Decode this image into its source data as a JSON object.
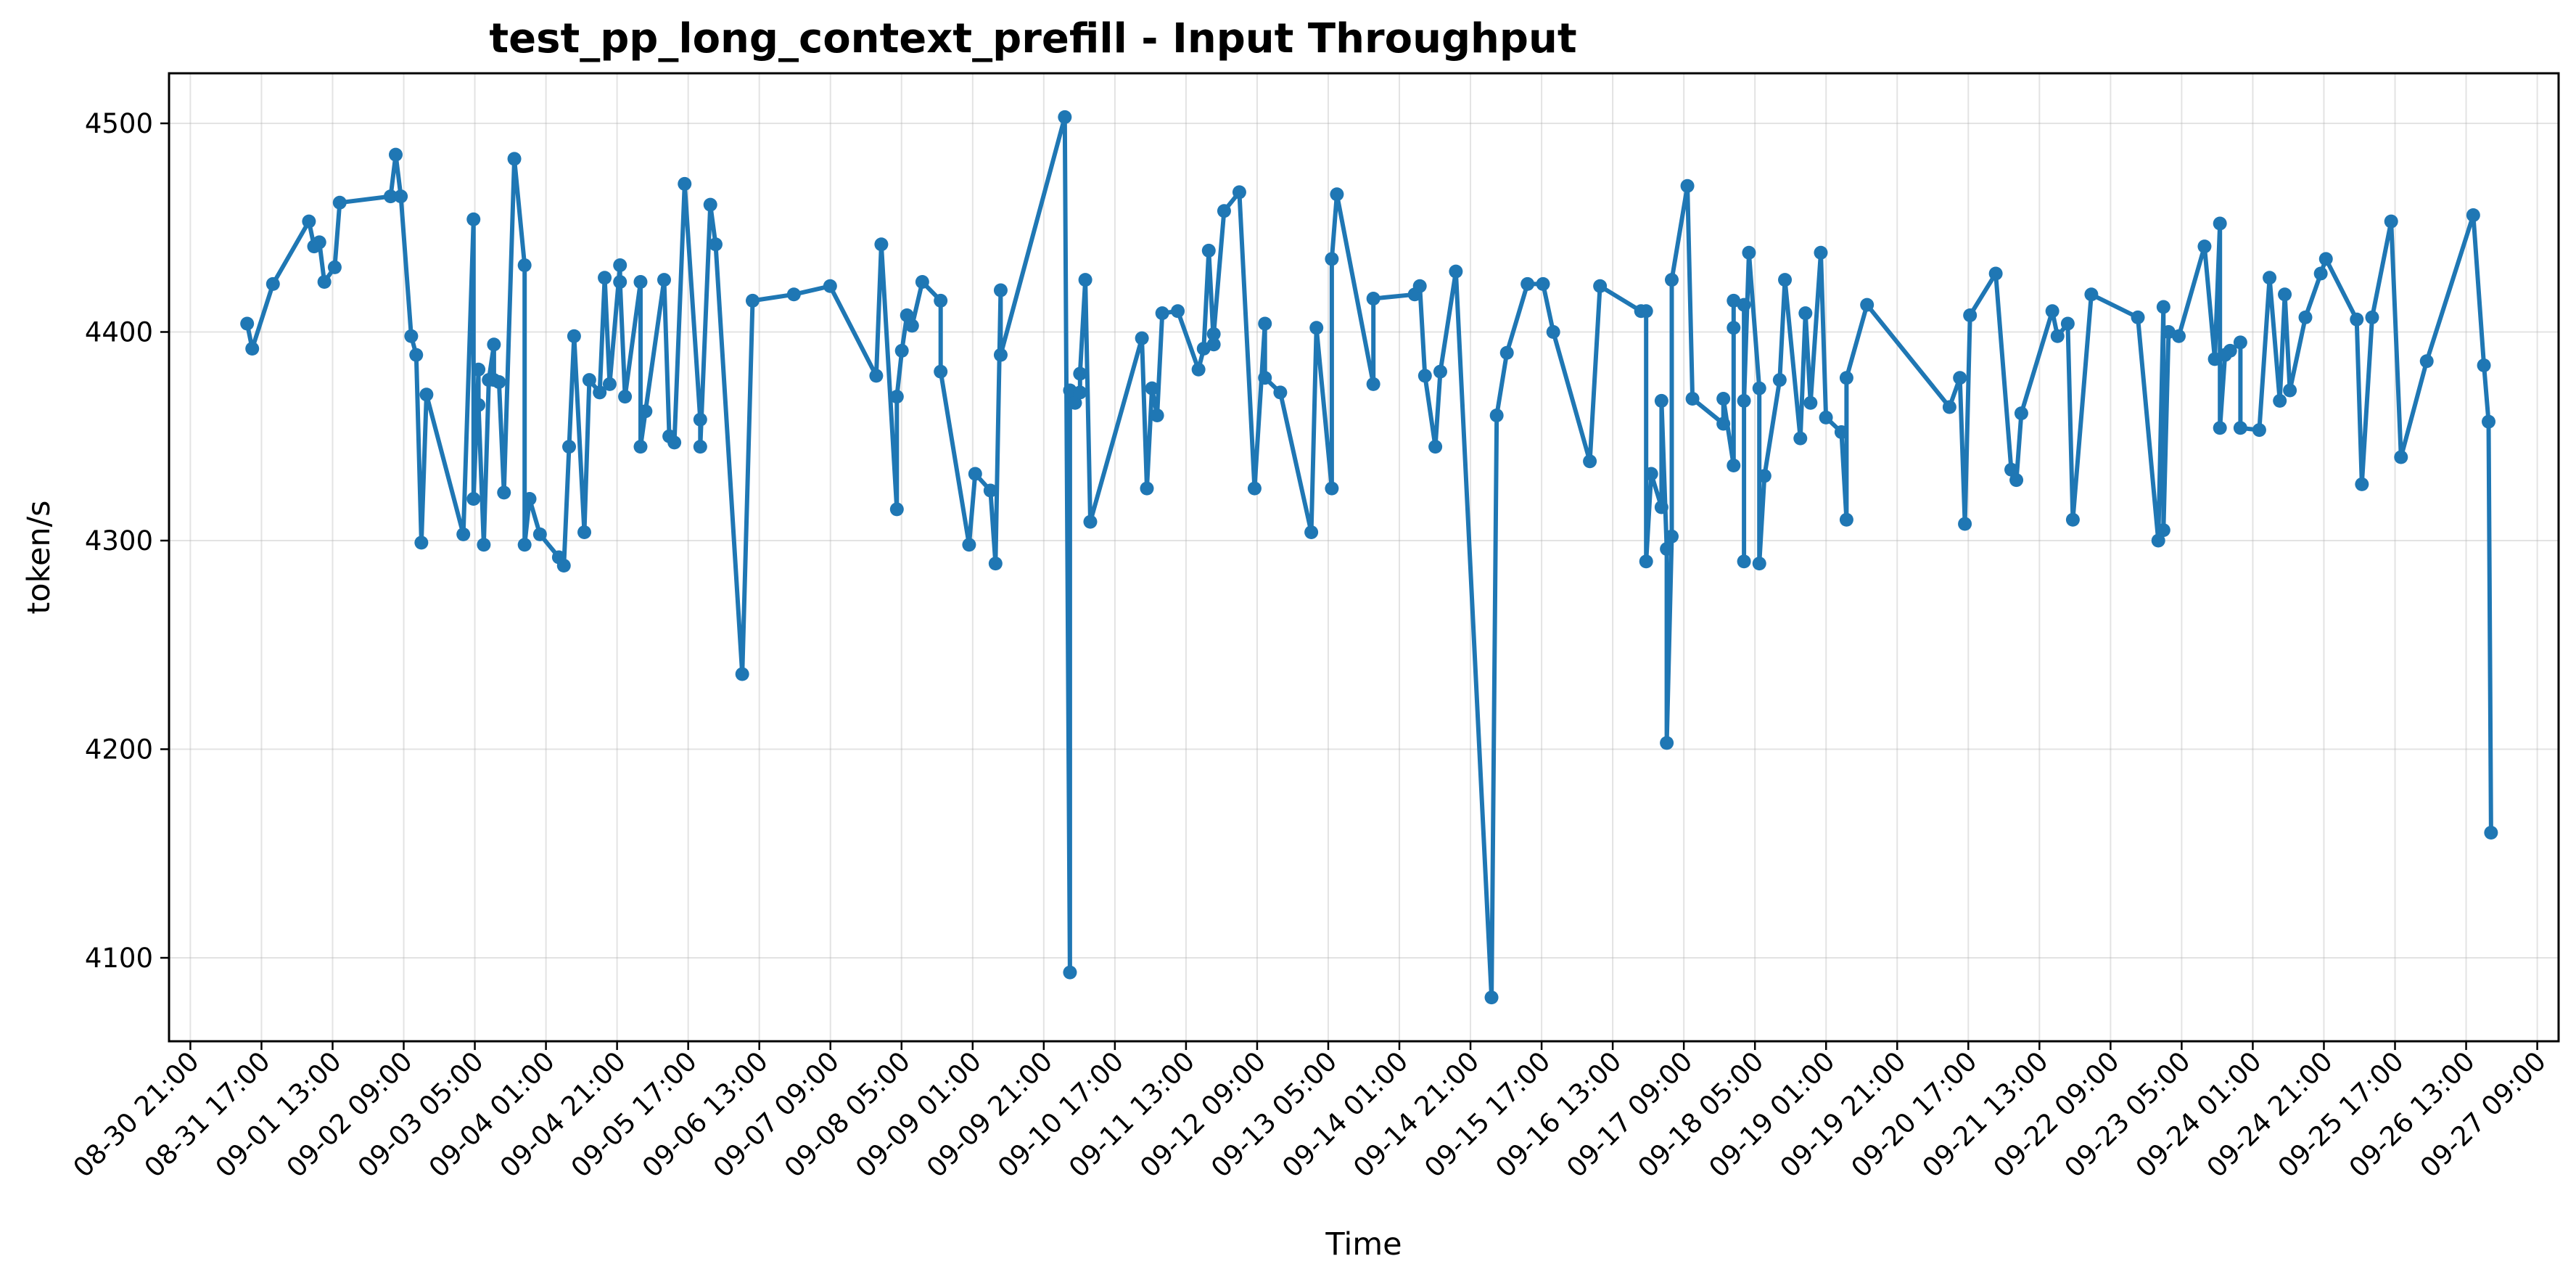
{
  "chart_data": {
    "type": "line",
    "title": "test_pp_long_context_prefill - Input Throughput",
    "xlabel": "Time",
    "ylabel": "token/s",
    "x_axis_type": "datetime",
    "xlim": [
      "2025-08-30 15:00",
      "2025-09-27 15:00"
    ],
    "ylim": [
      4060,
      4524
    ],
    "grid": true,
    "colors": {
      "series": "#1f77b4"
    },
    "x_ticks": [
      {
        "t": "2025-08-30 21:00",
        "label": "08-30 21:00"
      },
      {
        "t": "2025-08-31 17:00",
        "label": "08-31 17:00"
      },
      {
        "t": "2025-09-01 13:00",
        "label": "09-01 13:00"
      },
      {
        "t": "2025-09-02 09:00",
        "label": "09-02 09:00"
      },
      {
        "t": "2025-09-03 05:00",
        "label": "09-03 05:00"
      },
      {
        "t": "2025-09-04 01:00",
        "label": "09-04 01:00"
      },
      {
        "t": "2025-09-04 21:00",
        "label": "09-04 21:00"
      },
      {
        "t": "2025-09-05 17:00",
        "label": "09-05 17:00"
      },
      {
        "t": "2025-09-06 13:00",
        "label": "09-06 13:00"
      },
      {
        "t": "2025-09-07 09:00",
        "label": "09-07 09:00"
      },
      {
        "t": "2025-09-08 05:00",
        "label": "09-08 05:00"
      },
      {
        "t": "2025-09-09 01:00",
        "label": "09-09 01:00"
      },
      {
        "t": "2025-09-09 21:00",
        "label": "09-09 21:00"
      },
      {
        "t": "2025-09-10 17:00",
        "label": "09-10 17:00"
      },
      {
        "t": "2025-09-11 13:00",
        "label": "09-11 13:00"
      },
      {
        "t": "2025-09-12 09:00",
        "label": "09-12 09:00"
      },
      {
        "t": "2025-09-13 05:00",
        "label": "09-13 05:00"
      },
      {
        "t": "2025-09-14 01:00",
        "label": "09-14 01:00"
      },
      {
        "t": "2025-09-14 21:00",
        "label": "09-14 21:00"
      },
      {
        "t": "2025-09-15 17:00",
        "label": "09-15 17:00"
      },
      {
        "t": "2025-09-16 13:00",
        "label": "09-16 13:00"
      },
      {
        "t": "2025-09-17 09:00",
        "label": "09-17 09:00"
      },
      {
        "t": "2025-09-18 05:00",
        "label": "09-18 05:00"
      },
      {
        "t": "2025-09-19 01:00",
        "label": "09-19 01:00"
      },
      {
        "t": "2025-09-19 21:00",
        "label": "09-19 21:00"
      },
      {
        "t": "2025-09-20 17:00",
        "label": "09-20 17:00"
      },
      {
        "t": "2025-09-21 13:00",
        "label": "09-21 13:00"
      },
      {
        "t": "2025-09-22 09:00",
        "label": "09-22 09:00"
      },
      {
        "t": "2025-09-23 05:00",
        "label": "09-23 05:00"
      },
      {
        "t": "2025-09-24 01:00",
        "label": "09-24 01:00"
      },
      {
        "t": "2025-09-24 21:00",
        "label": "09-24 21:00"
      },
      {
        "t": "2025-09-25 17:00",
        "label": "09-25 17:00"
      },
      {
        "t": "2025-09-26 13:00",
        "label": "09-26 13:00"
      },
      {
        "t": "2025-09-27 09:00",
        "label": "09-27 09:00"
      }
    ],
    "y_ticks": [
      {
        "v": 4100,
        "label": "4100"
      },
      {
        "v": 4200,
        "label": "4200"
      },
      {
        "v": 4300,
        "label": "4300"
      },
      {
        "v": 4400,
        "label": "4400"
      },
      {
        "v": 4500,
        "label": "4500"
      }
    ],
    "series": [
      {
        "points": [
          [
            "2025-08-31 12:58",
            4404
          ],
          [
            "2025-08-31 14:24",
            4392
          ],
          [
            "2025-08-31 20:14",
            4423
          ],
          [
            "2025-09-01 06:21",
            4453
          ],
          [
            "2025-09-01 07:48",
            4441
          ],
          [
            "2025-09-01 09:17",
            4443
          ],
          [
            "2025-09-01 10:41",
            4424
          ],
          [
            "2025-09-01 13:36",
            4431
          ],
          [
            "2025-09-01 15:00",
            4462
          ],
          [
            "2025-09-02 05:19",
            4465
          ],
          [
            "2025-09-02 06:45",
            4485
          ],
          [
            "2025-09-02 08:12",
            4465
          ],
          [
            "2025-09-02 11:07",
            4398
          ],
          [
            "2025-09-02 12:31",
            4389
          ],
          [
            "2025-09-02 13:58",
            4299
          ],
          [
            "2025-09-02 15:24",
            4370
          ],
          [
            "2025-09-03 01:46",
            4303
          ],
          [
            "2025-09-03 04:38",
            4454
          ],
          [
            "2025-09-03 04:38",
            4320
          ],
          [
            "2025-09-03 06:02",
            4382
          ],
          [
            "2025-09-03 06:02",
            4365
          ],
          [
            "2025-09-03 07:31",
            4298
          ],
          [
            "2025-09-03 08:55",
            4377
          ],
          [
            "2025-09-03 10:22",
            4394
          ],
          [
            "2025-09-03 10:22",
            4377
          ],
          [
            "2025-09-03 11:48",
            4376
          ],
          [
            "2025-09-03 13:12",
            4323
          ],
          [
            "2025-09-03 16:07",
            4483
          ],
          [
            "2025-09-03 19:00",
            4432
          ],
          [
            "2025-09-03 19:00",
            4298
          ],
          [
            "2025-09-03 20:24",
            4320
          ],
          [
            "2025-09-03 23:19",
            4303
          ],
          [
            "2025-09-04 04:38",
            4292
          ],
          [
            "2025-09-04 06:02",
            4288
          ],
          [
            "2025-09-04 07:31",
            4345
          ],
          [
            "2025-09-04 08:55",
            4398
          ],
          [
            "2025-09-04 11:48",
            4304
          ],
          [
            "2025-09-04 13:12",
            4377
          ],
          [
            "2025-09-04 16:07",
            4371
          ],
          [
            "2025-09-04 17:31",
            4426
          ],
          [
            "2025-09-04 18:55",
            4375
          ],
          [
            "2025-09-04 21:50",
            4432
          ],
          [
            "2025-09-04 21:50",
            4424
          ],
          [
            "2025-09-04 23:14",
            4369
          ],
          [
            "2025-09-05 03:36",
            4424
          ],
          [
            "2025-09-05 03:36",
            4345
          ],
          [
            "2025-09-05 05:00",
            4362
          ],
          [
            "2025-09-05 10:14",
            4425
          ],
          [
            "2025-09-05 11:41",
            4350
          ],
          [
            "2025-09-05 13:07",
            4347
          ],
          [
            "2025-09-05 16:00",
            4471
          ],
          [
            "2025-09-05 20:24",
            4358
          ],
          [
            "2025-09-05 20:24",
            4345
          ],
          [
            "2025-09-05 23:14",
            4461
          ],
          [
            "2025-09-06 00:43",
            4442
          ],
          [
            "2025-09-06 08:12",
            4236
          ],
          [
            "2025-09-06 11:07",
            4415
          ],
          [
            "2025-09-06 22:43",
            4418
          ],
          [
            "2025-09-07 08:55",
            4422
          ],
          [
            "2025-09-07 21:53",
            4379
          ],
          [
            "2025-09-07 23:19",
            4442
          ],
          [
            "2025-09-08 03:41",
            4315
          ],
          [
            "2025-09-08 03:41",
            4369
          ],
          [
            "2025-09-08 05:05",
            4391
          ],
          [
            "2025-09-08 06:31",
            4408
          ],
          [
            "2025-09-08 07:58",
            4403
          ],
          [
            "2025-09-08 10:50",
            4424
          ],
          [
            "2025-09-08 16:00",
            4415
          ],
          [
            "2025-09-08 16:00",
            4381
          ],
          [
            "2025-09-09 00:00",
            4298
          ],
          [
            "2025-09-09 01:43",
            4332
          ],
          [
            "2025-09-09 06:00",
            4324
          ],
          [
            "2025-09-09 07:26",
            4289
          ],
          [
            "2025-09-09 08:53",
            4420
          ],
          [
            "2025-09-09 08:53",
            4389
          ],
          [
            "2025-09-10 02:55",
            4503
          ],
          [
            "2025-09-10 04:22",
            4093
          ],
          [
            "2025-09-10 04:22",
            4372
          ],
          [
            "2025-09-10 05:48",
            4366
          ],
          [
            "2025-09-10 07:12",
            4371
          ],
          [
            "2025-09-10 07:12",
            4380
          ],
          [
            "2025-09-10 08:41",
            4425
          ],
          [
            "2025-09-10 10:05",
            4309
          ],
          [
            "2025-09-11 00:36",
            4397
          ],
          [
            "2025-09-11 02:00",
            4325
          ],
          [
            "2025-09-11 03:26",
            4373
          ],
          [
            "2025-09-11 04:53",
            4360
          ],
          [
            "2025-09-11 06:19",
            4409
          ],
          [
            "2025-09-11 10:41",
            4410
          ],
          [
            "2025-09-11 16:31",
            4382
          ],
          [
            "2025-09-11 17:58",
            4392
          ],
          [
            "2025-09-11 19:24",
            4439
          ],
          [
            "2025-09-11 20:48",
            4394
          ],
          [
            "2025-09-11 20:48",
            4399
          ],
          [
            "2025-09-11 23:43",
            4458
          ],
          [
            "2025-09-12 04:00",
            4467
          ],
          [
            "2025-09-12 08:17",
            4325
          ],
          [
            "2025-09-12 11:12",
            4404
          ],
          [
            "2025-09-12 11:12",
            4378
          ],
          [
            "2025-09-12 15:31",
            4371
          ],
          [
            "2025-09-13 00:14",
            4304
          ],
          [
            "2025-09-13 01:41",
            4402
          ],
          [
            "2025-09-13 06:00",
            4325
          ],
          [
            "2025-09-13 06:00",
            4435
          ],
          [
            "2025-09-13 07:26",
            4466
          ],
          [
            "2025-09-13 17:41",
            4375
          ],
          [
            "2025-09-13 17:41",
            4416
          ],
          [
            "2025-09-14 05:19",
            4418
          ],
          [
            "2025-09-14 06:45",
            4422
          ],
          [
            "2025-09-14 08:12",
            4379
          ],
          [
            "2025-09-14 11:07",
            4345
          ],
          [
            "2025-09-14 12:31",
            4381
          ],
          [
            "2025-09-14 16:53",
            4429
          ],
          [
            "2025-09-15 02:55",
            4081
          ],
          [
            "2025-09-15 04:22",
            4360
          ],
          [
            "2025-09-15 07:14",
            4390
          ],
          [
            "2025-09-15 13:02",
            4423
          ],
          [
            "2025-09-15 17:24",
            4423
          ],
          [
            "2025-09-15 20:17",
            4400
          ],
          [
            "2025-09-16 06:34",
            4338
          ],
          [
            "2025-09-16 09:26",
            4422
          ],
          [
            "2025-09-16 20:58",
            4410
          ],
          [
            "2025-09-16 22:24",
            4410
          ],
          [
            "2025-09-16 22:24",
            4290
          ],
          [
            "2025-09-16 23:50",
            4332
          ],
          [
            "2025-09-17 02:43",
            4316
          ],
          [
            "2025-09-17 02:43",
            4367
          ],
          [
            "2025-09-17 04:12",
            4296
          ],
          [
            "2025-09-17 04:12",
            4203
          ],
          [
            "2025-09-17 05:36",
            4302
          ],
          [
            "2025-09-17 05:36",
            4425
          ],
          [
            "2025-09-17 10:00",
            4470
          ],
          [
            "2025-09-17 11:26",
            4368
          ],
          [
            "2025-09-17 20:07",
            4356
          ],
          [
            "2025-09-17 20:07",
            4368
          ],
          [
            "2025-09-17 23:00",
            4336
          ],
          [
            "2025-09-17 23:00",
            4402
          ],
          [
            "2025-09-17 23:00",
            4415
          ],
          [
            "2025-09-18 01:55",
            4413
          ],
          [
            "2025-09-18 01:55",
            4290
          ],
          [
            "2025-09-18 01:55",
            4367
          ],
          [
            "2025-09-18 03:19",
            4438
          ],
          [
            "2025-09-18 06:14",
            4373
          ],
          [
            "2025-09-18 06:14",
            4289
          ],
          [
            "2025-09-18 07:41",
            4331
          ],
          [
            "2025-09-18 11:58",
            4377
          ],
          [
            "2025-09-18 13:26",
            4425
          ],
          [
            "2025-09-18 17:46",
            4349
          ],
          [
            "2025-09-18 19:12",
            4409
          ],
          [
            "2025-09-18 20:38",
            4366
          ],
          [
            "2025-09-18 23:31",
            4438
          ],
          [
            "2025-09-19 00:58",
            4359
          ],
          [
            "2025-09-19 05:19",
            4352
          ],
          [
            "2025-09-19 06:45",
            4310
          ],
          [
            "2025-09-19 06:45",
            4378
          ],
          [
            "2025-09-19 12:31",
            4413
          ],
          [
            "2025-09-20 11:43",
            4364
          ],
          [
            "2025-09-20 14:38",
            4378
          ],
          [
            "2025-09-20 16:02",
            4308
          ],
          [
            "2025-09-20 17:29",
            4408
          ],
          [
            "2025-09-21 00:43",
            4428
          ],
          [
            "2025-09-21 05:05",
            4334
          ],
          [
            "2025-09-21 06:31",
            4329
          ],
          [
            "2025-09-21 07:55",
            4361
          ],
          [
            "2025-09-21 16:38",
            4410
          ],
          [
            "2025-09-21 18:05",
            4398
          ],
          [
            "2025-09-21 20:58",
            4404
          ],
          [
            "2025-09-21 22:24",
            4310
          ],
          [
            "2025-09-22 03:36",
            4418
          ],
          [
            "2025-09-22 16:41",
            4407
          ],
          [
            "2025-09-22 22:26",
            4300
          ],
          [
            "2025-09-22 23:53",
            4412
          ],
          [
            "2025-09-22 23:53",
            4305
          ],
          [
            "2025-09-23 01:19",
            4400
          ],
          [
            "2025-09-23 04:12",
            4398
          ],
          [
            "2025-09-23 11:26",
            4441
          ],
          [
            "2025-09-23 14:19",
            4387
          ],
          [
            "2025-09-23 15:46",
            4452
          ],
          [
            "2025-09-23 15:46",
            4354
          ],
          [
            "2025-09-23 17:12",
            4389
          ],
          [
            "2025-09-23 18:38",
            4391
          ],
          [
            "2025-09-23 21:31",
            4395
          ],
          [
            "2025-09-23 21:31",
            4354
          ],
          [
            "2025-09-24 02:50",
            4353
          ],
          [
            "2025-09-24 05:43",
            4426
          ],
          [
            "2025-09-24 08:36",
            4367
          ],
          [
            "2025-09-24 10:00",
            4418
          ],
          [
            "2025-09-24 11:26",
            4372
          ],
          [
            "2025-09-24 15:48",
            4407
          ],
          [
            "2025-09-24 20:07",
            4428
          ],
          [
            "2025-09-24 21:34",
            4435
          ],
          [
            "2025-09-25 06:14",
            4406
          ],
          [
            "2025-09-25 07:41",
            4327
          ],
          [
            "2025-09-25 10:34",
            4407
          ],
          [
            "2025-09-25 15:55",
            4453
          ],
          [
            "2025-09-25 18:41",
            4340
          ],
          [
            "2025-09-26 01:55",
            4386
          ],
          [
            "2025-09-26 15:00",
            4456
          ],
          [
            "2025-09-26 18:00",
            4384
          ],
          [
            "2025-09-26 19:19",
            4357
          ],
          [
            "2025-09-26 20:00",
            4160
          ]
        ]
      }
    ]
  }
}
